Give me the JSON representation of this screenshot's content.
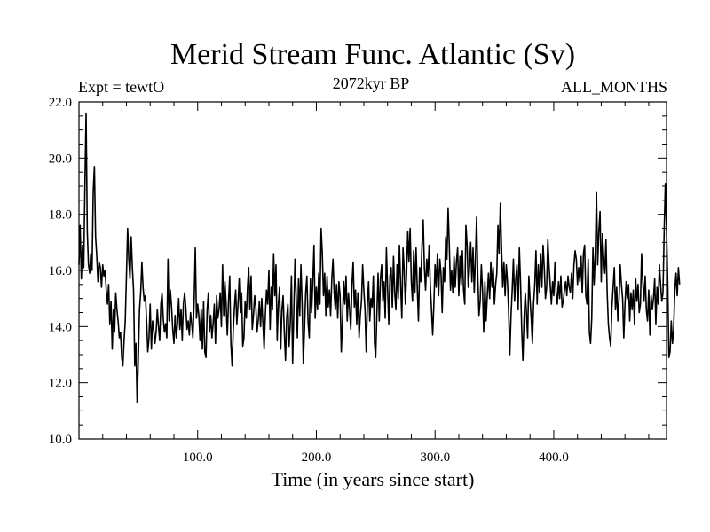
{
  "chart_data": {
    "type": "line",
    "title": "Merid Stream Func. Atlantic (Sv)",
    "subtitle_left": "Expt = tewtO",
    "subtitle_center": "2072kyr BP",
    "subtitle_right": "ALL_MONTHS",
    "xlabel": "Time (in years since start)",
    "ylabel": "",
    "xlim": [
      0,
      495
    ],
    "ylim": [
      10,
      22
    ],
    "x_ticks": [
      100,
      200,
      300,
      400
    ],
    "x_tick_labels": [
      "100.0",
      "200.0",
      "300.0",
      "400.0"
    ],
    "y_ticks": [
      10,
      12,
      14,
      16,
      18,
      20,
      22
    ],
    "y_tick_labels": [
      "10.0",
      "12.0",
      "14.0",
      "16.0",
      "18.0",
      "20.0",
      "22.0"
    ],
    "series": [
      {
        "name": "Merid Stream Func. Atlantic",
        "color": "#000000",
        "x_start": 0,
        "x_step": 1,
        "values": [
          16.2,
          17.6,
          15.7,
          16.9,
          16.1,
          19.0,
          21.6,
          17.4,
          16.2,
          15.9,
          16.6,
          16.0,
          18.8,
          19.7,
          17.2,
          16.5,
          15.6,
          16.3,
          16.1,
          15.4,
          16.2,
          15.8,
          16.0,
          15.3,
          14.8,
          15.5,
          14.1,
          14.9,
          13.2,
          14.6,
          13.8,
          15.2,
          14.6,
          14.2,
          13.6,
          13.8,
          12.9,
          12.6,
          13.5,
          14.2,
          15.8,
          17.5,
          16.4,
          15.7,
          17.2,
          16.1,
          15.3,
          12.6,
          13.4,
          11.3,
          12.8,
          14.6,
          15.2,
          16.3,
          15.4,
          14.9,
          15.1,
          14.2,
          13.1,
          13.6,
          14.8,
          13.2,
          14.2,
          13.9,
          13.4,
          13.8,
          14.6,
          14.0,
          13.5,
          14.8,
          15.2,
          14.3,
          13.8,
          14.1,
          13.6,
          16.4,
          14.2,
          15.3,
          14.7,
          13.9,
          13.4,
          14.4,
          13.6,
          14.1,
          15.0,
          13.9,
          14.6,
          13.5,
          14.8,
          15.2,
          14.7,
          13.9,
          14.2,
          13.7,
          14.5,
          14.1,
          13.6,
          14.9,
          16.8,
          14.3,
          14.8,
          14.4,
          13.5,
          14.6,
          13.2,
          14.9,
          13.1,
          12.9,
          14.6,
          15.2,
          13.8,
          14.4,
          13.6,
          14.1,
          14.8,
          13.4,
          15.1,
          14.3,
          14.6,
          15.2,
          14.0,
          16.2,
          14.4,
          15.6,
          14.8,
          13.7,
          14.9,
          15.8,
          13.4,
          12.6,
          13.9,
          14.7,
          15.3,
          14.1,
          14.8,
          15.7,
          14.5,
          15.2,
          13.3,
          13.6,
          14.9,
          14.3,
          15.4,
          16.1,
          14.6,
          15.8,
          13.9,
          14.4,
          15.1,
          14.7,
          13.8,
          14.2,
          14.9,
          14.0,
          15.0,
          14.1,
          13.2,
          14.4,
          15.3,
          14.8,
          16.0,
          13.9,
          15.4,
          14.6,
          16.6,
          15.1,
          16.2,
          13.5,
          14.8,
          15.4,
          13.2,
          14.6,
          15.1,
          13.8,
          12.8,
          14.3,
          14.8,
          13.3,
          14.1,
          15.8,
          12.7,
          14.5,
          16.4,
          15.1,
          13.6,
          15.7,
          14.4,
          16.2,
          14.8,
          12.7,
          13.9,
          15.2,
          15.8,
          14.2,
          13.6,
          15.7,
          14.5,
          15.6,
          16.9,
          14.3,
          15.4,
          14.6,
          15.9,
          14.8,
          17.5,
          16.6,
          15.1,
          15.9,
          14.4,
          15.8,
          14.7,
          15.3,
          14.4,
          15.7,
          16.4,
          15.2,
          14.6,
          15.5,
          14.3,
          15.6,
          15.1,
          13.1,
          14.2,
          15.6,
          14.8,
          15.8,
          14.2,
          15.2,
          14.6,
          13.9,
          15.5,
          16.3,
          14.7,
          15.3,
          14.1,
          15.2,
          13.6,
          14.4,
          14.9,
          16.2,
          15.3,
          14.6,
          13.1,
          14.8,
          15.6,
          14.2,
          15.0,
          14.7,
          15.8,
          13.4,
          12.9,
          14.5,
          15.9,
          14.2,
          15.7,
          16.2,
          14.9,
          15.6,
          14.3,
          16.8,
          15.4,
          14.1,
          15.8,
          16.1,
          14.7,
          16.5,
          15.2,
          14.6,
          16.2,
          15.0,
          16.9,
          15.5,
          14.3,
          16.8,
          16.0,
          14.8,
          15.9,
          17.4,
          16.3,
          17.5,
          15.6,
          14.9,
          16.7,
          15.2,
          16.8,
          15.4,
          14.2,
          16.1,
          15.6,
          16.9,
          17.8,
          16.1,
          15.3,
          16.4,
          15.8,
          16.9,
          15.5,
          14.6,
          13.7,
          14.8,
          16.2,
          15.4,
          16.6,
          15.1,
          16.4,
          15.9,
          14.5,
          16.1,
          15.6,
          17.2,
          16.4,
          18.2,
          16.9,
          15.3,
          16.0,
          15.2,
          16.5,
          15.4,
          16.3,
          16.8,
          15.1,
          16.5,
          15.5,
          16.7,
          15.3,
          14.8,
          17.6,
          16.9,
          15.4,
          16.1,
          17.0,
          15.6,
          16.8,
          15.2,
          16.4,
          17.9,
          15.8,
          14.4,
          14.9,
          16.2,
          15.3,
          13.8,
          15.6,
          14.2,
          15.1,
          15.9,
          15.0,
          16.3,
          15.4,
          16.1,
          14.8,
          15.5,
          15.9,
          17.6,
          16.6,
          18.4,
          16.8,
          15.4,
          16.3,
          15.1,
          16.2,
          15.6,
          14.5,
          13.0,
          14.4,
          15.3,
          16.4,
          14.9,
          15.7,
          16.2,
          14.6,
          16.8,
          15.6,
          13.9,
          12.8,
          14.3,
          15.2,
          14.5,
          13.6,
          15.8,
          15.0,
          14.3,
          13.4,
          14.8,
          15.5,
          16.7,
          14.8,
          16.2,
          15.2,
          16.6,
          15.4,
          16.9,
          16.1,
          15.0,
          15.4,
          17.1,
          16.2,
          15.5,
          14.8,
          15.6,
          15.1,
          16.3,
          15.2,
          14.8,
          15.6,
          15.0,
          15.8,
          14.7,
          14.9,
          15.3,
          15.6,
          15.1,
          15.8,
          15.4,
          15.2,
          15.9,
          15.0,
          16.2,
          16.7,
          16.4,
          15.5,
          16.1,
          15.6,
          16.5,
          15.2,
          16.6,
          16.9,
          15.1,
          14.8,
          16.4,
          13.8,
          13.4,
          14.3,
          16.8,
          15.5,
          16.6,
          18.8,
          16.2,
          17.4,
          18.1,
          15.6,
          17.3,
          16.5,
          15.9,
          17.1,
          15.2,
          14.1,
          13.6,
          13.3,
          14.7,
          15.4,
          16.1,
          14.6,
          15.4,
          14.2,
          15.0,
          16.2,
          15.5,
          15.0,
          13.6,
          14.8,
          15.6,
          15.0,
          15.5,
          14.2,
          15.2,
          14.6,
          15.3,
          14.1,
          15.7,
          14.9,
          15.5,
          14.5,
          14.8,
          16.6,
          15.6,
          14.9,
          15.8,
          14.6,
          14.2,
          15.3,
          13.7,
          15.1,
          14.6,
          15.0,
          15.7,
          14.1,
          15.4,
          14.8,
          16.2,
          15.5,
          14.9,
          15.2,
          17.4,
          19.1,
          17.5,
          15.6,
          12.9,
          13.1,
          14.2,
          13.4,
          13.9,
          15.3,
          15.9,
          15.1,
          16.1,
          15.5
        ]
      }
    ]
  }
}
